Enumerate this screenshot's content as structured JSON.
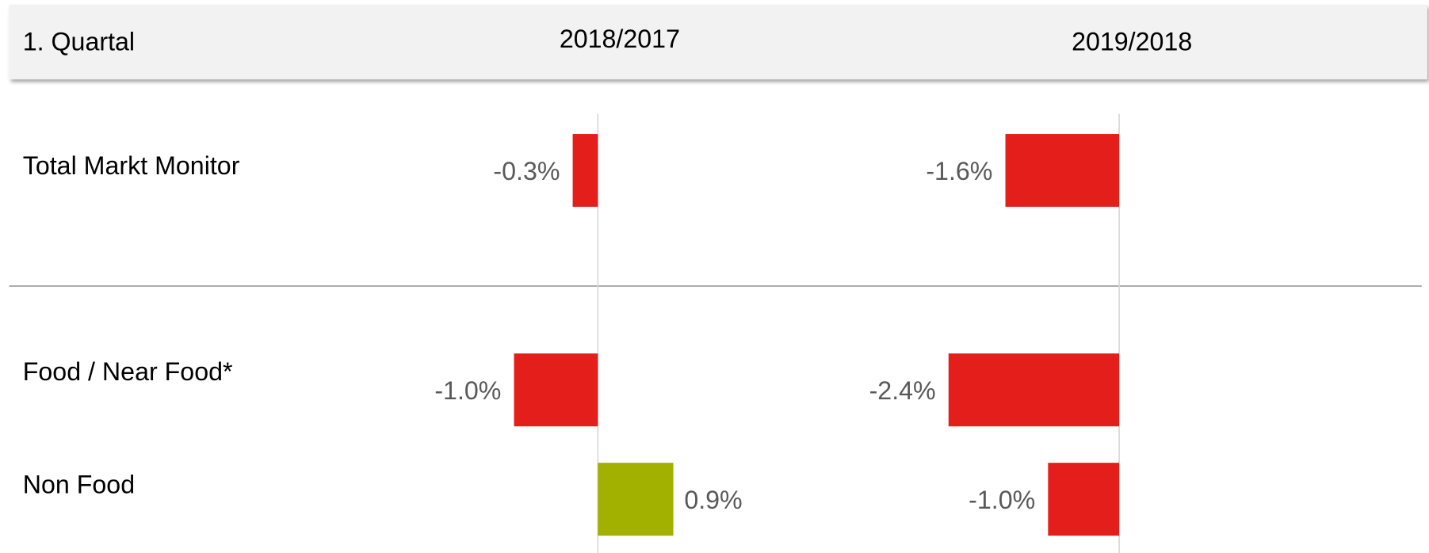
{
  "chart_data": {
    "type": "bar",
    "orientation": "horizontal",
    "header": "1. Quartal",
    "categories": [
      "Total Markt Monitor",
      "Food / Near Food*",
      "Non Food"
    ],
    "series": [
      {
        "name": "2018/2017",
        "color": "#e31e1b",
        "positive_color": "#a2b000",
        "values": [
          -0.3,
          -1.0,
          0.9
        ],
        "value_labels": [
          "-0.3%",
          "-1.0%",
          "0.9%"
        ]
      },
      {
        "name": "2019/2018",
        "color": "#e31e1b",
        "positive_color": "#a2b000",
        "values": [
          -1.6,
          -2.4,
          -1.0
        ],
        "value_labels": [
          "-1.6%",
          "-2.4%",
          "-1.0%"
        ]
      }
    ]
  }
}
